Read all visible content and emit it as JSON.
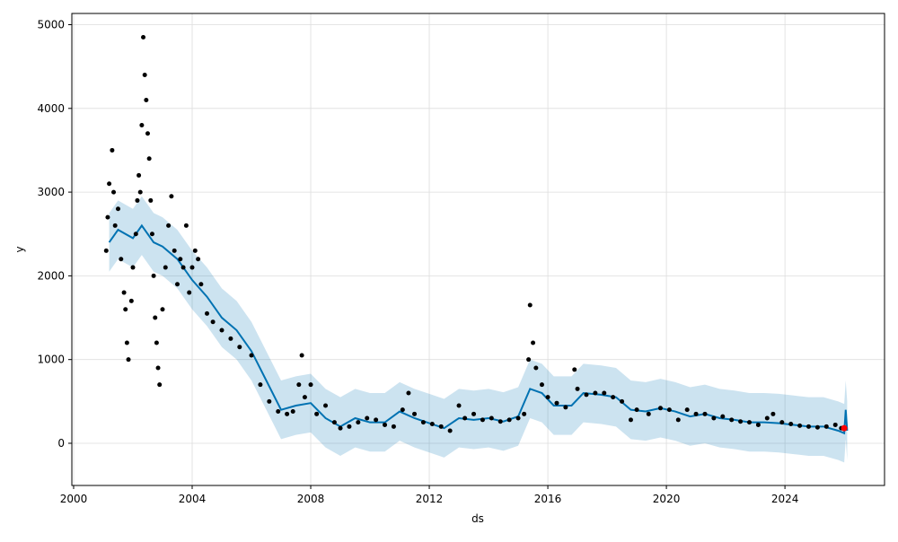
{
  "chart_data": {
    "type": "line",
    "xlabel": "ds",
    "ylabel": "y",
    "xlim": [
      1999.94,
      2027.36
    ],
    "ylim": [
      -504,
      5134
    ],
    "xticks": [
      2000,
      2004,
      2008,
      2012,
      2016,
      2020,
      2024
    ],
    "yticks": [
      0,
      1000,
      2000,
      3000,
      4000,
      5000
    ],
    "grid": true,
    "series": [
      {
        "style": "forecast",
        "color": "#0072B2",
        "x": [
          2001.2,
          2001.5,
          2002.0,
          2002.3,
          2002.7,
          2003.0,
          2003.5,
          2004.0,
          2004.5,
          2005.0,
          2005.5,
          2006.0,
          2006.5,
          2007.0,
          2007.5,
          2008.0,
          2008.5,
          2009.0,
          2009.5,
          2010.0,
          2010.5,
          2011.0,
          2011.5,
          2012.0,
          2012.5,
          2013.0,
          2013.5,
          2014.0,
          2014.5,
          2015.0,
          2015.4,
          2015.8,
          2016.2,
          2016.8,
          2017.2,
          2017.8,
          2018.3,
          2018.8,
          2019.3,
          2019.8,
          2020.3,
          2020.8,
          2021.3,
          2021.8,
          2022.3,
          2022.8,
          2023.3,
          2023.8,
          2024.3,
          2024.8,
          2025.3,
          2025.8,
          2026.0,
          2026.05,
          2026.1
        ],
        "values": [
          2400,
          2550,
          2450,
          2600,
          2400,
          2350,
          2200,
          1950,
          1750,
          1500,
          1350,
          1100,
          750,
          400,
          450,
          480,
          300,
          200,
          300,
          250,
          250,
          380,
          300,
          240,
          180,
          300,
          280,
          300,
          260,
          320,
          650,
          600,
          450,
          450,
          600,
          580,
          550,
          400,
          380,
          420,
          380,
          320,
          350,
          300,
          280,
          250,
          250,
          240,
          220,
          200,
          200,
          150,
          120,
          400,
          150
        ],
        "lower": [
          2050,
          2200,
          2100,
          2250,
          2050,
          2000,
          1850,
          1600,
          1400,
          1150,
          1000,
          750,
          400,
          50,
          100,
          130,
          -50,
          -150,
          -50,
          -100,
          -100,
          30,
          -50,
          -110,
          -170,
          -50,
          -70,
          -50,
          -90,
          -30,
          300,
          250,
          100,
          100,
          250,
          230,
          200,
          50,
          30,
          70,
          30,
          -30,
          0,
          -50,
          -70,
          -100,
          -100,
          -110,
          -130,
          -150,
          -150,
          -200,
          -230,
          50,
          -200
        ],
        "upper": [
          2750,
          2900,
          2800,
          2950,
          2750,
          2700,
          2550,
          2300,
          2100,
          1850,
          1700,
          1450,
          1100,
          750,
          800,
          830,
          650,
          550,
          650,
          600,
          600,
          730,
          650,
          590,
          530,
          650,
          630,
          650,
          610,
          670,
          1000,
          950,
          800,
          800,
          950,
          930,
          900,
          750,
          730,
          770,
          730,
          670,
          700,
          650,
          630,
          600,
          600,
          590,
          570,
          550,
          550,
          500,
          470,
          750,
          500
        ]
      },
      {
        "style": "points",
        "color": "#000000",
        "x": [
          2001.1,
          2001.15,
          2001.2,
          2001.3,
          2001.35,
          2001.4,
          2001.5,
          2001.6,
          2001.7,
          2001.75,
          2001.8,
          2001.85,
          2001.95,
          2002.0,
          2002.1,
          2002.15,
          2002.2,
          2002.25,
          2002.3,
          2002.35,
          2002.4,
          2002.45,
          2002.5,
          2002.55,
          2002.6,
          2002.65,
          2002.7,
          2002.75,
          2002.8,
          2002.85,
          2002.9,
          2003.0,
          2003.1,
          2003.2,
          2003.3,
          2003.4,
          2003.5,
          2003.6,
          2003.7,
          2003.8,
          2003.9,
          2004.0,
          2004.1,
          2004.2,
          2004.3,
          2004.5,
          2004.7,
          2005.0,
          2005.3,
          2005.6,
          2006.0,
          2006.3,
          2006.6,
          2006.9,
          2007.2,
          2007.4,
          2007.6,
          2007.7,
          2007.8,
          2008.0,
          2008.2,
          2008.5,
          2008.8,
          2009.0,
          2009.3,
          2009.6,
          2009.9,
          2010.2,
          2010.5,
          2010.8,
          2011.1,
          2011.3,
          2011.5,
          2011.8,
          2012.1,
          2012.4,
          2012.7,
          2013.0,
          2013.2,
          2013.5,
          2013.8,
          2014.1,
          2014.4,
          2014.7,
          2015.0,
          2015.2,
          2015.35,
          2015.4,
          2015.5,
          2015.6,
          2015.8,
          2016.0,
          2016.3,
          2016.6,
          2016.9,
          2017.0,
          2017.3,
          2017.6,
          2017.9,
          2018.2,
          2018.5,
          2018.8,
          2019.0,
          2019.4,
          2019.8,
          2020.1,
          2020.4,
          2020.7,
          2021.0,
          2021.3,
          2021.6,
          2021.9,
          2022.2,
          2022.5,
          2022.8,
          2023.1,
          2023.4,
          2023.6,
          2023.9,
          2024.2,
          2024.5,
          2024.8,
          2025.1,
          2025.4,
          2025.7,
          2025.9
        ],
        "values": [
          2300,
          2700,
          3100,
          3500,
          3000,
          2600,
          2800,
          2200,
          1800,
          1600,
          1200,
          1000,
          1700,
          2100,
          2500,
          2900,
          3200,
          3000,
          3800,
          4850,
          4400,
          4100,
          3700,
          3400,
          2900,
          2500,
          2000,
          1500,
          1200,
          900,
          700,
          1600,
          2100,
          2600,
          2950,
          2300,
          1900,
          2200,
          2100,
          2600,
          1800,
          2100,
          2300,
          2200,
          1900,
          1550,
          1450,
          1350,
          1250,
          1150,
          1050,
          700,
          500,
          380,
          350,
          380,
          700,
          1050,
          550,
          700,
          350,
          450,
          250,
          180,
          200,
          250,
          300,
          280,
          220,
          200,
          400,
          600,
          350,
          250,
          230,
          200,
          150,
          450,
          300,
          350,
          280,
          300,
          260,
          280,
          300,
          350,
          1000,
          1650,
          1200,
          900,
          700,
          550,
          480,
          430,
          880,
          650,
          580,
          600,
          600,
          550,
          500,
          280,
          400,
          350,
          420,
          400,
          280,
          400,
          350,
          350,
          300,
          320,
          280,
          260,
          250,
          220,
          300,
          350,
          250,
          230,
          210,
          200,
          190,
          200,
          220,
          180
        ]
      },
      {
        "style": "points",
        "color": "#ff0000",
        "x": [
          2026.0
        ],
        "values": [
          180
        ]
      }
    ]
  }
}
